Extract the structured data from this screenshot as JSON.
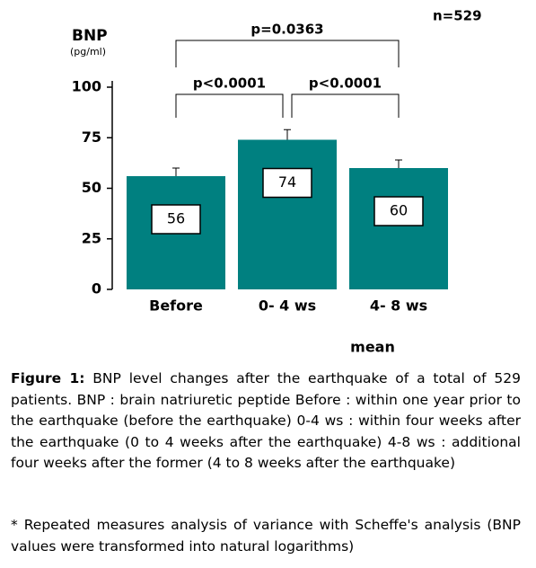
{
  "chart_data": {
    "type": "bar",
    "y_label": "BNP",
    "y_unit": "(pg/ml)",
    "sample_size": "n=529",
    "x_note": "mean",
    "categories": [
      "Before",
      "0- 4 ws",
      "4- 8 ws"
    ],
    "values": [
      56,
      74,
      60
    ],
    "errors": [
      4,
      5,
      4
    ],
    "color": "#008080",
    "ylim": [
      0,
      100
    ],
    "yticks": [
      0,
      25,
      50,
      75,
      100
    ],
    "comparisons": [
      {
        "from": 0,
        "to": 2,
        "label": "p=0.0363"
      },
      {
        "from": 0,
        "to": 1,
        "label": "p<0.0001"
      },
      {
        "from": 1,
        "to": 2,
        "label": "p<0.0001"
      }
    ]
  },
  "caption": {
    "label": "Figure 1:",
    "text": "BNP level changes after the earthquake of a total of 529 patients.  BNP : brain natriuretic peptide   Before : within one year prior to the earthquake (before the earthquake)   0-4 ws : within four weeks after the earthquake (0 to 4 weeks after the earthquake) 4-8 ws : additional four weeks after the former (4 to 8 weeks after the earthquake)",
    "note": "* Repeated measures analysis of variance with Scheffe's analysis (BNP values were transformed into natural logarithms)"
  }
}
